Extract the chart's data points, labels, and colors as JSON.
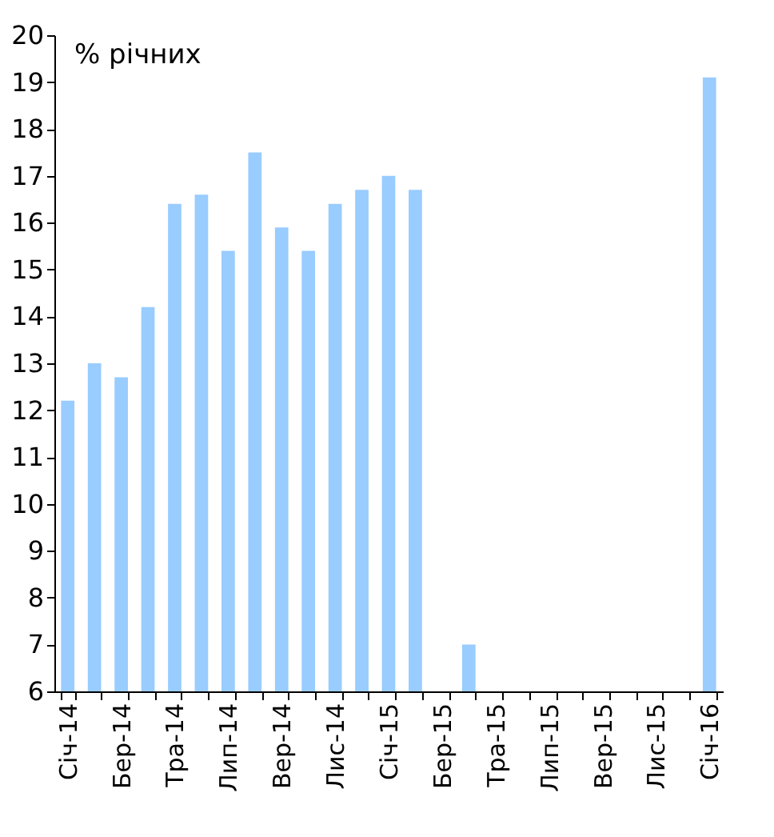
{
  "chart_data": {
    "type": "bar",
    "ylabel": "% річних",
    "categories": [
      "Січ-14",
      null,
      "Бер-14",
      null,
      "Тра-14",
      null,
      "Лип-14",
      null,
      "Вер-14",
      null,
      "Лис-14",
      null,
      "Січ-15",
      null,
      "Бер-15",
      null,
      "Тра-15",
      null,
      "Лип-15",
      null,
      "Вер-15",
      null,
      "Лис-15",
      null,
      "Січ-16"
    ],
    "values": [
      12.2,
      13.0,
      12.7,
      14.2,
      16.4,
      16.6,
      15.4,
      17.5,
      15.9,
      15.4,
      16.4,
      16.7,
      17.0,
      16.7,
      null,
      7.0,
      null,
      null,
      null,
      null,
      null,
      null,
      null,
      null,
      19.1
    ],
    "color": "#99ccff",
    "ylim": [
      6,
      20
    ],
    "yticks": [
      6,
      7,
      8,
      9,
      10,
      11,
      12,
      13,
      14,
      15,
      16,
      17,
      18,
      19,
      20
    ],
    "grid": false
  }
}
